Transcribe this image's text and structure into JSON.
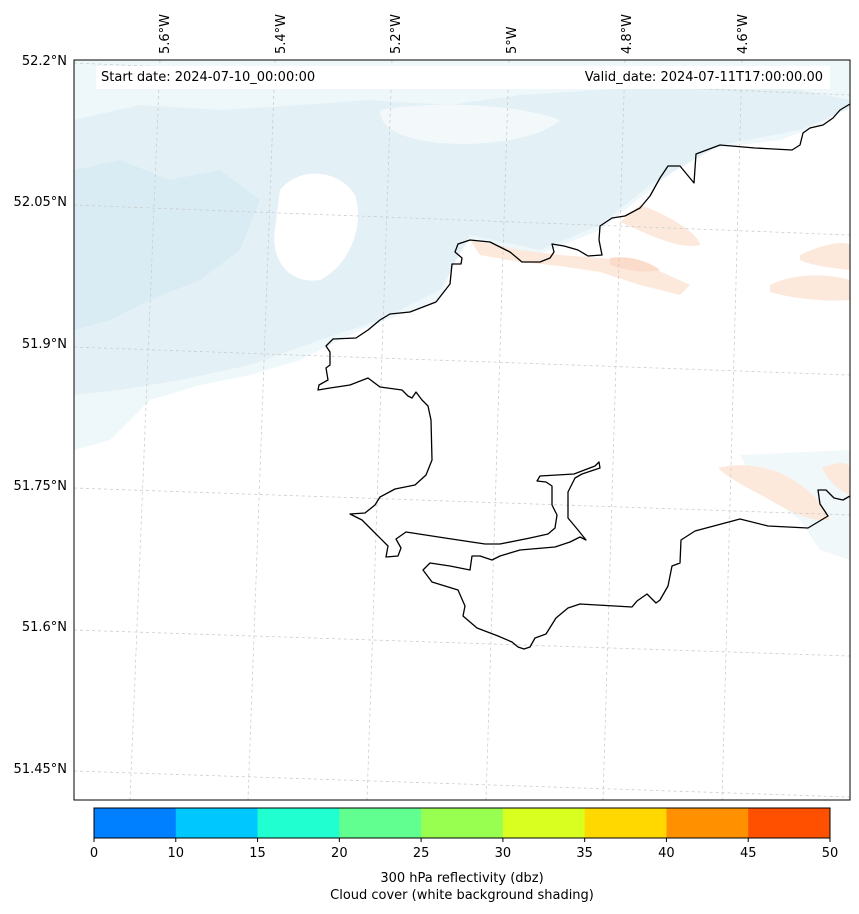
{
  "header": {
    "start_date": "Start date: 2024-07-10_00:00:00",
    "valid_date": "Valid_date: 2024-07-11T17:00:00.00"
  },
  "axes": {
    "lon_labels": [
      "5.6°W",
      "5.4°W",
      "5.2°W",
      "5°W",
      "4.8°W",
      "4.6°W"
    ],
    "lat_labels": [
      "52.2°N",
      "52.05°N",
      "51.9°N",
      "51.75°N",
      "51.6°N",
      "51.45°N"
    ]
  },
  "colorbar": {
    "ticks": [
      "0",
      "10",
      "15",
      "20",
      "25",
      "30",
      "35",
      "40",
      "45",
      "50"
    ],
    "colors": [
      "#0080ff",
      "#00c8ff",
      "#20ffd0",
      "#60ff90",
      "#98ff50",
      "#d8ff20",
      "#ffd800",
      "#ff9000",
      "#ff5000"
    ],
    "label_line1": "300 hPa reflectivity (dbz)",
    "label_line2": "Cloud cover (white background shading)"
  },
  "colors": {
    "cloud": "#e6f3f7",
    "reflectivity": "#fde6d8",
    "coast": "#000000"
  }
}
